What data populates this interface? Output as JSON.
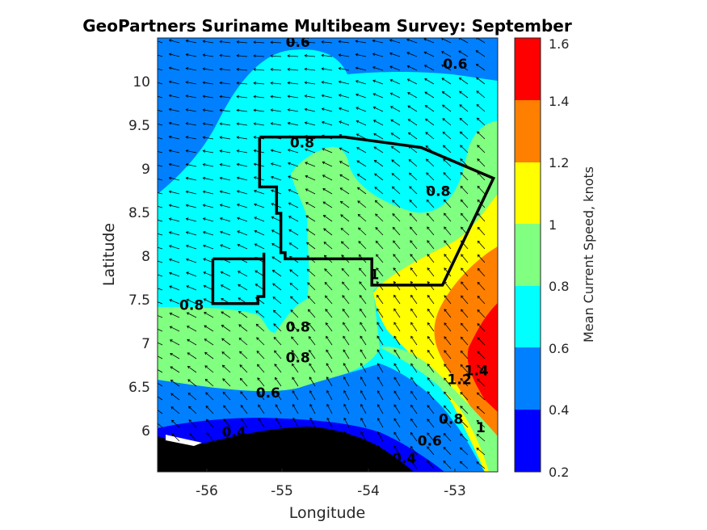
{
  "chart_data": {
    "type": "heatmap",
    "title": "GeoPartners Suriname Multibeam Survey: September",
    "xlabel": "Longitude",
    "ylabel": "Latitude",
    "xlim": [
      -56.5,
      -52.5
    ],
    "ylim": [
      5.5,
      10.45
    ],
    "xticks": [
      "-56",
      "-55",
      "-54",
      "-53"
    ],
    "yticks": [
      "6",
      "6.5",
      "7",
      "7.5",
      "8",
      "8.5",
      "9",
      "9.5",
      "10"
    ],
    "colorbar": {
      "label": "Mean Current Speed, knots",
      "ticks": [
        "0.2",
        "0.4",
        "0.6",
        "0.8",
        "1",
        "1.2",
        "1.4",
        "1.6"
      ],
      "levels": [
        0.2,
        0.4,
        0.6,
        0.8,
        1.0,
        1.2,
        1.4,
        1.6
      ],
      "colors": [
        "#0000ff",
        "#0080ff",
        "#00ffff",
        "#80ff80",
        "#ffff00",
        "#ff8000",
        "#ff0000"
      ]
    },
    "contour_labels": [
      {
        "text": "0.6",
        "lon": -54.85,
        "lat": 10.35
      },
      {
        "text": "0.6",
        "lon": -53.0,
        "lat": 10.1
      },
      {
        "text": "0.8",
        "lon": -54.8,
        "lat": 9.2
      },
      {
        "text": "0.8",
        "lon": -53.2,
        "lat": 8.65
      },
      {
        "text": "1",
        "lon": -53.95,
        "lat": 7.7
      },
      {
        "text": "0.8",
        "lon": -56.1,
        "lat": 7.35
      },
      {
        "text": "0.8",
        "lon": -54.85,
        "lat": 7.1
      },
      {
        "text": "0.8",
        "lon": -54.85,
        "lat": 6.75
      },
      {
        "text": "0.6",
        "lon": -55.2,
        "lat": 6.35
      },
      {
        "text": "0.4",
        "lon": -55.6,
        "lat": 5.9
      },
      {
        "text": "0.6",
        "lon": -53.3,
        "lat": 5.8
      },
      {
        "text": "0.4",
        "lon": -53.6,
        "lat": 5.6
      },
      {
        "text": "0.8",
        "lon": -53.05,
        "lat": 6.05
      },
      {
        "text": "1",
        "lon": -52.7,
        "lat": 5.95
      },
      {
        "text": "1.2",
        "lon": -52.95,
        "lat": 6.5
      },
      {
        "text": "1.4",
        "lon": -52.75,
        "lat": 6.6
      }
    ],
    "survey_polygon": [
      [
        -55.3,
        9.32
      ],
      [
        -54.3,
        9.32
      ],
      [
        -53.4,
        9.2
      ],
      [
        -52.55,
        8.85
      ],
      [
        -53.15,
        7.63
      ],
      [
        -53.98,
        7.63
      ],
      [
        -53.98,
        7.93
      ],
      [
        -55.0,
        7.93
      ],
      [
        -55.0,
        8.0
      ],
      [
        -55.05,
        8.0
      ],
      [
        -55.05,
        8.45
      ],
      [
        -55.1,
        8.45
      ],
      [
        -55.1,
        8.75
      ],
      [
        -55.3,
        8.75
      ]
    ],
    "sub_polygon": [
      [
        -55.85,
        7.93
      ],
      [
        -55.25,
        7.93
      ],
      [
        -55.25,
        8.0
      ],
      [
        -55.25,
        7.5
      ],
      [
        -55.32,
        7.5
      ],
      [
        -55.32,
        7.42
      ],
      [
        -55.85,
        7.42
      ]
    ],
    "current_direction": "westward / north-westward"
  }
}
